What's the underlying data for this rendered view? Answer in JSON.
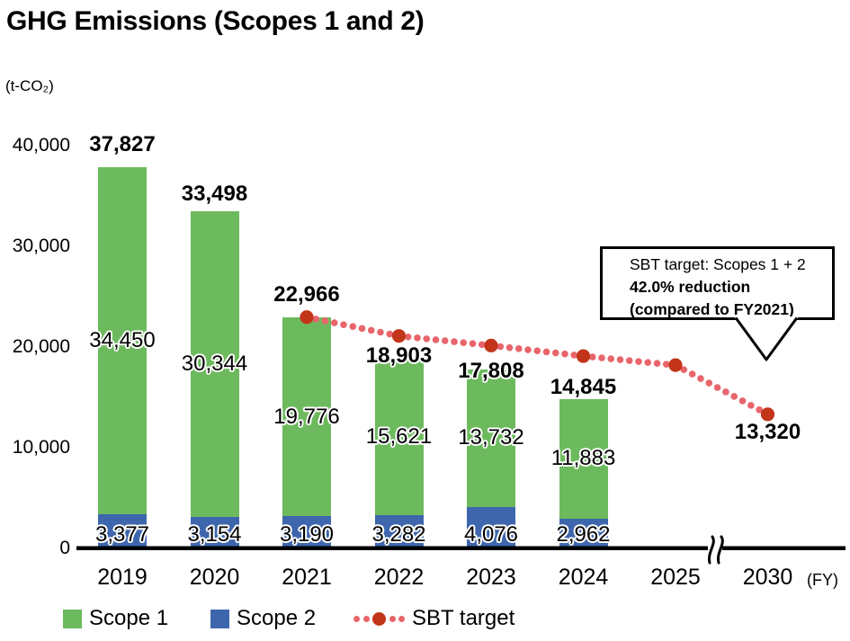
{
  "title": "GHG Emissions (Scopes 1 and 2)",
  "y_axis": {
    "unit": "(t-CO₂)",
    "ticks": [
      {
        "label": "40,000",
        "value": 40000
      },
      {
        "label": "30,000",
        "value": 30000
      },
      {
        "label": "20,000",
        "value": 20000
      },
      {
        "label": "10,000",
        "value": 10000
      },
      {
        "label": "0",
        "value": 0
      }
    ]
  },
  "x_axis": {
    "unit_label": "(FY)"
  },
  "chart_data": {
    "type": "bar",
    "subtype": "stacked-bars-with-dotted-target-line",
    "categories": [
      "2019",
      "2020",
      "2021",
      "2022",
      "2023",
      "2024",
      "2025",
      "2030"
    ],
    "series": [
      {
        "name": "Scope 1",
        "color": "#6CBA5D",
        "values": [
          34450,
          30344,
          19776,
          15621,
          13732,
          11883,
          null,
          null
        ]
      },
      {
        "name": "Scope 2",
        "color": "#3E66AC",
        "values": [
          3377,
          3154,
          3190,
          3282,
          4076,
          2962,
          null,
          null
        ]
      }
    ],
    "totals": [
      37827,
      33498,
      22966,
      18903,
      17808,
      14845,
      null,
      null
    ],
    "target_line": {
      "name": "SBT target",
      "values": [
        null,
        null,
        22966,
        21100,
        20150,
        19100,
        18200,
        13320
      ],
      "labeled_points": {
        "2021": 22966,
        "2030": 13320
      }
    },
    "ylim": [
      0,
      40000
    ],
    "grid": false,
    "legend_position": "bottom",
    "axis_break_between": [
      "2025",
      "2030"
    ]
  },
  "annotation": {
    "line1": "SBT target: Scopes 1 + 2",
    "line2": "42.0% reduction",
    "line3": "(compared to FY2021)"
  },
  "legend": {
    "scope1": "Scope 1",
    "scope2": "Scope 2",
    "sbt": "SBT target"
  },
  "colors": {
    "scope1": "#6CBA5D",
    "scope2": "#3E66AC",
    "sbt_large_dot": "#C23519",
    "sbt_small_dot": "#E8656B",
    "axis": "#000000",
    "text": "#000000"
  }
}
